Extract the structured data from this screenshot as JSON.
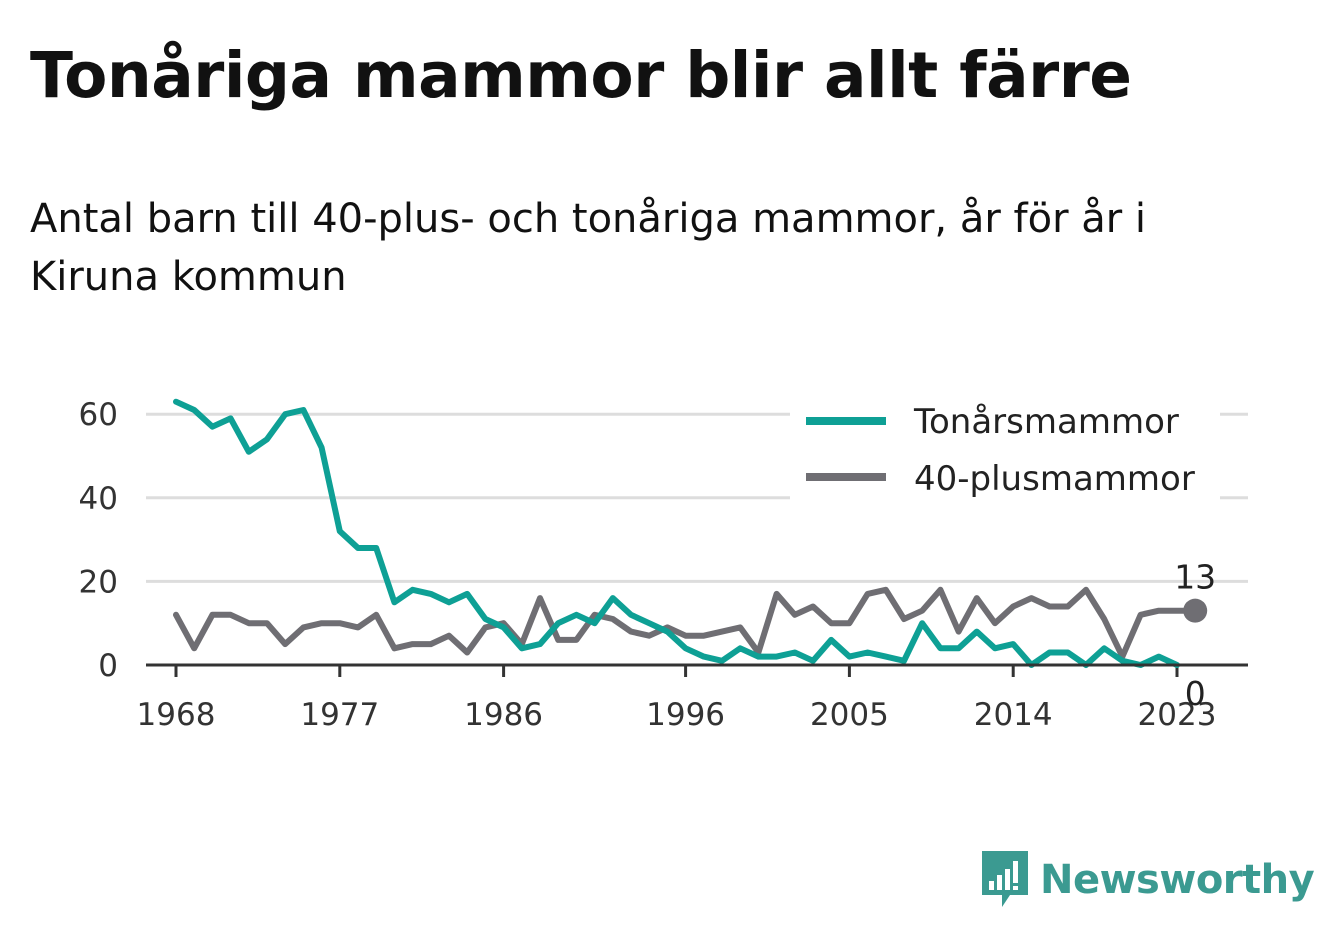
{
  "title": "Tonåriga mammor blir allt färre",
  "subtitle": "Antal barn till 40-plus- och tonåriga mammor, år för år i Kiruna kommun",
  "logo_text": "Newsworthy",
  "colors": {
    "teen": "#0ea095",
    "forty": "#6f6e73",
    "grid": "#dddddd",
    "axis": "#333333",
    "logo": "#3b9a91"
  },
  "chart_data": {
    "type": "line",
    "title": "Tonåriga mammor blir allt färre",
    "subtitle": "Antal barn till 40-plus- och tonåriga mammor, år för år i Kiruna kommun",
    "xlabel": "",
    "ylabel": "",
    "xlim": [
      1968,
      2024
    ],
    "ylim": [
      0,
      70
    ],
    "x_ticks": [
      1968,
      1977,
      1986,
      1996,
      2005,
      2014,
      2023
    ],
    "y_ticks": [
      0,
      20,
      40,
      60
    ],
    "grid": true,
    "legend_position": "top-right",
    "x": [
      1968,
      1969,
      1970,
      1971,
      1972,
      1973,
      1974,
      1975,
      1976,
      1977,
      1978,
      1979,
      1980,
      1981,
      1982,
      1983,
      1984,
      1985,
      1986,
      1987,
      1988,
      1989,
      1990,
      1991,
      1992,
      1993,
      1994,
      1995,
      1996,
      1997,
      1998,
      1999,
      2000,
      2001,
      2002,
      2003,
      2004,
      2005,
      2006,
      2007,
      2008,
      2009,
      2010,
      2011,
      2012,
      2013,
      2014,
      2015,
      2016,
      2017,
      2018,
      2019,
      2020,
      2021,
      2022,
      2023,
      2024
    ],
    "series": [
      {
        "name": "Tonårsmammor",
        "color": "#0ea095",
        "values": [
          63,
          61,
          57,
          59,
          51,
          54,
          60,
          61,
          52,
          32,
          28,
          28,
          15,
          18,
          17,
          15,
          17,
          11,
          9,
          4,
          5,
          10,
          12,
          10,
          16,
          12,
          10,
          8,
          4,
          2,
          1,
          4,
          2,
          2,
          3,
          1,
          6,
          2,
          3,
          2,
          1,
          10,
          4,
          4,
          8,
          4,
          5,
          0,
          3,
          3,
          0,
          4,
          1,
          0,
          2,
          0,
          null
        ],
        "end_label": "0"
      },
      {
        "name": "40-plusmammor",
        "color": "#6f6e73",
        "values": [
          12,
          4,
          12,
          12,
          10,
          10,
          5,
          9,
          10,
          10,
          9,
          12,
          4,
          5,
          5,
          7,
          3,
          9,
          10,
          5,
          16,
          6,
          6,
          12,
          11,
          8,
          7,
          9,
          7,
          7,
          8,
          9,
          3,
          17,
          12,
          14,
          10,
          10,
          17,
          18,
          11,
          13,
          18,
          8,
          16,
          10,
          14,
          16,
          14,
          14,
          18,
          11,
          2,
          12,
          13,
          null,
          13
        ],
        "end_label": "13"
      }
    ]
  }
}
